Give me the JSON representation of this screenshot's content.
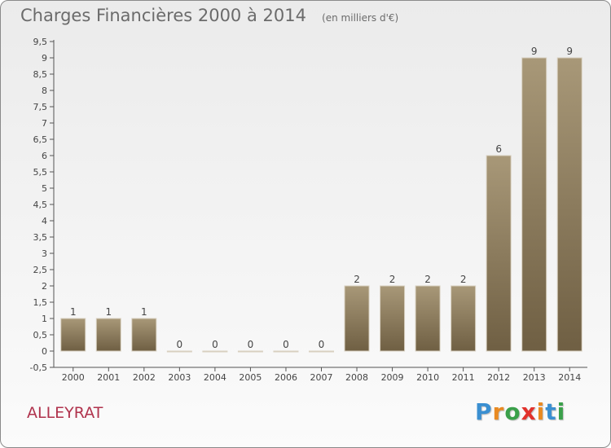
{
  "chart_data": {
    "type": "bar",
    "title": "Charges Financières 2000 à 2014",
    "subtitle": "(en milliers d'€)",
    "categories": [
      "2000",
      "2001",
      "2002",
      "2003",
      "2004",
      "2005",
      "2006",
      "2007",
      "2008",
      "2009",
      "2010",
      "2011",
      "2012",
      "2013",
      "2014"
    ],
    "values": [
      1,
      1,
      1,
      0,
      0,
      0,
      0,
      0,
      2,
      2,
      2,
      2,
      6,
      9,
      9
    ],
    "data_labels": [
      "1",
      "1",
      "1",
      "0",
      "0",
      "0",
      "0",
      "0",
      "2",
      "2",
      "2",
      "2",
      "6",
      "9",
      "9"
    ],
    "y_ticks": [
      "-0,5",
      "0",
      "0,5",
      "1",
      "1,5",
      "2",
      "2,5",
      "3",
      "3,5",
      "4",
      "4,5",
      "5",
      "5,5",
      "6",
      "6,5",
      "7",
      "7,5",
      "8",
      "8,5",
      "9",
      "9,5"
    ],
    "ylim": [
      -0.5,
      9.5
    ],
    "xlabel": "",
    "ylabel": "",
    "grid": false,
    "legend": "none",
    "bar_color_top": "#a89878",
    "bar_color_bottom": "#6f5f43"
  },
  "place_name": "ALLEYRAT",
  "logo": {
    "letters": [
      "P",
      "r",
      "o",
      "x",
      "i",
      "t",
      "i"
    ],
    "colors": [
      "#3a8fd1",
      "#e98a22",
      "#3aa04a",
      "#e2322c",
      "#e98a22",
      "#3a8fd1",
      "#3aa04a"
    ]
  }
}
